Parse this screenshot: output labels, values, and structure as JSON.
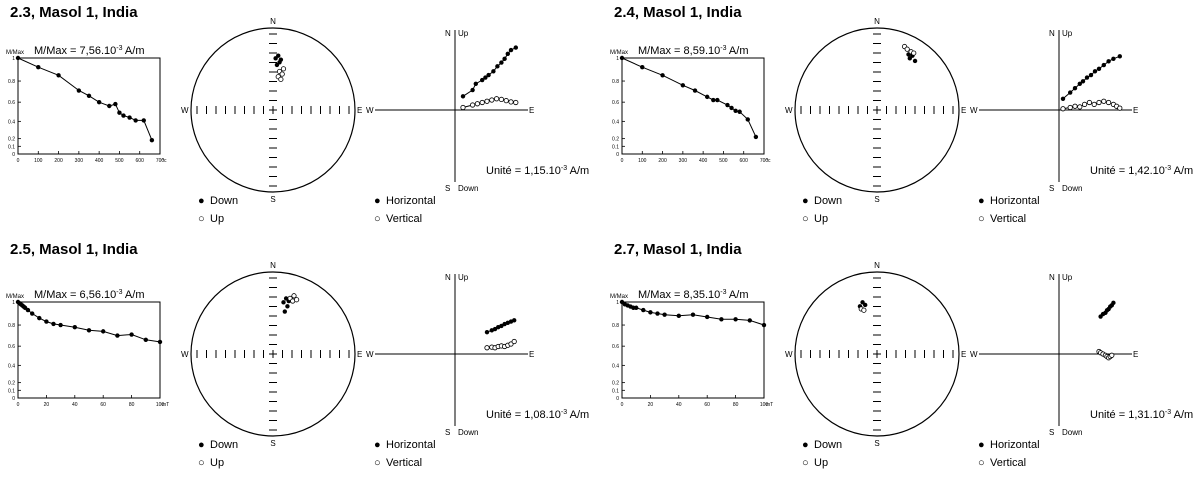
{
  "panels": [
    {
      "title": "2.3, Masol 1, India",
      "decay": {
        "ylabel": "M/Max",
        "mmax_text": "M/Max = 7,56.10",
        "mmax_exp": "-3",
        "mmax_unit": " A/m",
        "xunit": "°c",
        "yticks": [
          "1",
          "0.8",
          "0.6",
          "0.4",
          "0.2",
          "0.1",
          "0"
        ],
        "xticks": [
          "0",
          "100",
          "200",
          "300",
          "400",
          "500",
          "600",
          "700"
        ],
        "xmax": 700
      },
      "stereo": {
        "labels": {
          "N": "N",
          "S": "S",
          "E": "E",
          "W": "W"
        }
      },
      "zij": {
        "labels": {
          "N": "N",
          "up": "Up",
          "S": "S",
          "down": "Down",
          "E": "E",
          "W": "W"
        },
        "unit_text": "Unité = 1,15.10",
        "unit_exp": "-3",
        "unit_unit": " A/m"
      },
      "legend": {
        "down": "Down",
        "up": "Up",
        "horizontal": "Horizontal",
        "vertical": "Vertical"
      }
    },
    {
      "title": "2.4, Masol 1, India",
      "decay": {
        "ylabel": "M/Max",
        "mmax_text": "M/Max = 8,59.10",
        "mmax_exp": "-3",
        "mmax_unit": " A/m",
        "xunit": "°c",
        "yticks": [
          "1",
          "0.8",
          "0.6",
          "0.4",
          "0.2",
          "0.1",
          "0"
        ],
        "xticks": [
          "0",
          "100",
          "200",
          "300",
          "400",
          "500",
          "600",
          "700"
        ],
        "xmax": 700
      },
      "stereo": {
        "labels": {
          "N": "N",
          "S": "S",
          "E": "E",
          "W": "W"
        }
      },
      "zij": {
        "labels": {
          "N": "N",
          "up": "Up",
          "S": "S",
          "down": "Down",
          "E": "E",
          "W": "W"
        },
        "unit_text": "Unité = 1,42.10",
        "unit_exp": "-3",
        "unit_unit": " A/m"
      },
      "legend": {
        "down": "Down",
        "up": "Up",
        "horizontal": "Horizontal",
        "vertical": "Vertical"
      }
    },
    {
      "title": "2.5, Masol 1, India",
      "decay": {
        "ylabel": "M/Max",
        "mmax_text": "M/Max = 6,56.10",
        "mmax_exp": "-3",
        "mmax_unit": " A/m",
        "xunit": "mT",
        "yticks": [
          "1",
          "0.8",
          "0.6",
          "0.4",
          "0.2",
          "0.1",
          "0"
        ],
        "xticks": [
          "0",
          "20",
          "40",
          "60",
          "80",
          "100"
        ],
        "xmax": 100
      },
      "stereo": {
        "labels": {
          "N": "N",
          "S": "S",
          "E": "E",
          "W": "W"
        }
      },
      "zij": {
        "labels": {
          "N": "N",
          "up": "Up",
          "S": "S",
          "down": "Down",
          "E": "E",
          "W": "W"
        },
        "unit_text": "Unité = 1,08.10",
        "unit_exp": "-3",
        "unit_unit": " A/m"
      },
      "legend": {
        "down": "Down",
        "up": "Up",
        "horizontal": "Horizontal",
        "vertical": "Vertical"
      }
    },
    {
      "title": "2.7, Masol 1, India",
      "decay": {
        "ylabel": "M/Max",
        "mmax_text": "M/Max = 8,35.10",
        "mmax_exp": "-3",
        "mmax_unit": " A/m",
        "xunit": "mT",
        "yticks": [
          "1",
          "0.8",
          "0.6",
          "0.4",
          "0.2",
          "0.1",
          "0"
        ],
        "xticks": [
          "0",
          "20",
          "40",
          "60",
          "80",
          "100"
        ],
        "xmax": 100
      },
      "stereo": {
        "labels": {
          "N": "N",
          "S": "S",
          "E": "E",
          "W": "W"
        }
      },
      "zij": {
        "labels": {
          "N": "N",
          "up": "Up",
          "S": "S",
          "down": "Down",
          "E": "E",
          "W": "W"
        },
        "unit_text": "Unité = 1,31.10",
        "unit_exp": "-3",
        "unit_unit": " A/m"
      },
      "legend": {
        "down": "Down",
        "up": "Up",
        "horizontal": "Horizontal",
        "vertical": "Vertical"
      }
    }
  ],
  "chart_data": [
    {
      "type": "line",
      "title": "2.3, Masol 1, India",
      "ylabel": "M/Max",
      "xunit": "°c",
      "xlim": [
        0,
        700
      ],
      "ylim": [
        0,
        1
      ],
      "series": [
        {
          "x": [
            0,
            100,
            200,
            300,
            350,
            400,
            450,
            480,
            500,
            520,
            550,
            580,
            620,
            660
          ],
          "y": [
            1,
            0.92,
            0.85,
            0.71,
            0.66,
            0.6,
            0.56,
            0.58,
            0.49,
            0.46,
            0.44,
            0.41,
            0.41,
            0.18
          ]
        }
      ]
    },
    {
      "type": "line",
      "title": "2.4, Masol 1, India",
      "ylabel": "M/Max",
      "xunit": "°c",
      "xlim": [
        0,
        700
      ],
      "ylim": [
        0,
        1
      ],
      "series": [
        {
          "x": [
            0,
            100,
            200,
            300,
            360,
            420,
            450,
            470,
            520,
            540,
            560,
            580,
            620,
            660
          ],
          "y": [
            1,
            0.92,
            0.85,
            0.76,
            0.71,
            0.65,
            0.62,
            0.62,
            0.57,
            0.54,
            0.51,
            0.5,
            0.42,
            0.22
          ]
        }
      ]
    },
    {
      "type": "line",
      "title": "2.5, Masol 1, India",
      "ylabel": "M/Max",
      "xunit": "mT",
      "xlim": [
        0,
        100
      ],
      "ylim": [
        0,
        1
      ],
      "series": [
        {
          "x": [
            0,
            1,
            2,
            3,
            4,
            5,
            7,
            10,
            15,
            20,
            25,
            30,
            40,
            50,
            60,
            70,
            80,
            90,
            100
          ],
          "y": [
            1,
            0.99,
            0.98,
            0.97,
            0.96,
            0.95,
            0.93,
            0.9,
            0.86,
            0.83,
            0.81,
            0.8,
            0.78,
            0.75,
            0.74,
            0.7,
            0.71,
            0.66,
            0.64
          ]
        }
      ]
    },
    {
      "type": "line",
      "title": "2.7, Masol 1, India",
      "ylabel": "M/Max",
      "xunit": "mT",
      "xlim": [
        0,
        100
      ],
      "ylim": [
        0,
        1
      ],
      "series": [
        {
          "x": [
            0,
            2,
            4,
            6,
            8,
            10,
            15,
            20,
            25,
            30,
            40,
            50,
            60,
            70,
            80,
            90,
            100
          ],
          "y": [
            1,
            0.98,
            0.97,
            0.96,
            0.95,
            0.95,
            0.93,
            0.91,
            0.9,
            0.89,
            0.88,
            0.89,
            0.87,
            0.85,
            0.85,
            0.84,
            0.8
          ]
        }
      ]
    },
    {
      "type": "scatter",
      "title": "2.3, Masol 1, India",
      "stereo": {
        "down": [
          [
            0.52,
            0.55
          ],
          [
            0.53,
            0.5
          ],
          [
            0.55,
            0.52
          ],
          [
            0.54,
            0.57
          ],
          [
            0.56,
            0.54
          ]
        ],
        "up": [
          [
            0.55,
            0.45
          ],
          [
            0.57,
            0.43
          ],
          [
            0.54,
            0.41
          ],
          [
            0.58,
            0.47
          ],
          [
            0.56,
            0.39
          ]
        ]
      },
      "horizontal": [
        [
          0.1,
          0.22
        ],
        [
          0.22,
          0.32
        ],
        [
          0.26,
          0.42
        ],
        [
          0.34,
          0.48
        ],
        [
          0.38,
          0.52
        ],
        [
          0.42,
          0.56
        ],
        [
          0.48,
          0.62
        ],
        [
          0.53,
          0.7
        ],
        [
          0.58,
          0.76
        ],
        [
          0.62,
          0.82
        ],
        [
          0.66,
          0.9
        ],
        [
          0.7,
          0.96
        ],
        [
          0.76,
          1.0
        ]
      ],
      "vertical": [
        [
          0.1,
          0.04
        ],
        [
          0.22,
          0.08
        ],
        [
          0.28,
          0.1
        ],
        [
          0.34,
          0.12
        ],
        [
          0.4,
          0.14
        ],
        [
          0.46,
          0.16
        ],
        [
          0.52,
          0.18
        ],
        [
          0.58,
          0.17
        ],
        [
          0.64,
          0.15
        ],
        [
          0.7,
          0.13
        ],
        [
          0.76,
          0.12
        ]
      ]
    },
    {
      "type": "scatter",
      "title": "2.4, Masol 1, India",
      "stereo": {
        "down": [
          [
            0.74,
            0.58
          ],
          [
            0.75,
            0.55
          ],
          [
            0.77,
            0.57
          ],
          [
            0.79,
            0.53
          ]
        ],
        "up": [
          [
            0.71,
            0.64
          ],
          [
            0.73,
            0.62
          ],
          [
            0.76,
            0.6
          ],
          [
            0.78,
            0.59
          ]
        ]
      },
      "horizontal": [
        [
          0.05,
          0.18
        ],
        [
          0.14,
          0.28
        ],
        [
          0.2,
          0.35
        ],
        [
          0.26,
          0.42
        ],
        [
          0.3,
          0.46
        ],
        [
          0.35,
          0.52
        ],
        [
          0.4,
          0.56
        ],
        [
          0.45,
          0.62
        ],
        [
          0.5,
          0.66
        ],
        [
          0.56,
          0.72
        ],
        [
          0.62,
          0.78
        ],
        [
          0.68,
          0.82
        ],
        [
          0.76,
          0.86
        ]
      ],
      "vertical": [
        [
          0.05,
          0.02
        ],
        [
          0.14,
          0.04
        ],
        [
          0.2,
          0.06
        ],
        [
          0.26,
          0.05
        ],
        [
          0.32,
          0.09
        ],
        [
          0.38,
          0.12
        ],
        [
          0.44,
          0.09
        ],
        [
          0.5,
          0.12
        ],
        [
          0.56,
          0.14
        ],
        [
          0.62,
          0.12
        ],
        [
          0.68,
          0.09
        ],
        [
          0.72,
          0.06
        ],
        [
          0.76,
          0.03
        ]
      ]
    },
    {
      "type": "scatter",
      "title": "2.5, Masol 1, India",
      "stereo": {
        "down": [
          [
            0.58,
            0.55
          ],
          [
            0.6,
            0.58
          ],
          [
            0.62,
            0.56
          ],
          [
            0.61,
            0.52
          ],
          [
            0.59,
            0.48
          ]
        ],
        "up": [
          [
            0.63,
            0.58
          ],
          [
            0.65,
            0.56
          ],
          [
            0.68,
            0.57
          ],
          [
            0.66,
            0.6
          ]
        ]
      },
      "horizontal": [
        [
          0.4,
          0.35
        ],
        [
          0.46,
          0.38
        ],
        [
          0.5,
          0.4
        ],
        [
          0.54,
          0.43
        ],
        [
          0.58,
          0.45
        ],
        [
          0.62,
          0.48
        ],
        [
          0.66,
          0.5
        ],
        [
          0.7,
          0.52
        ],
        [
          0.74,
          0.54
        ]
      ],
      "vertical": [
        [
          0.4,
          0.1
        ],
        [
          0.46,
          0.11
        ],
        [
          0.5,
          0.1
        ],
        [
          0.54,
          0.12
        ],
        [
          0.58,
          0.13
        ],
        [
          0.62,
          0.12
        ],
        [
          0.66,
          0.14
        ],
        [
          0.7,
          0.16
        ],
        [
          0.74,
          0.2
        ]
      ]
    },
    {
      "type": "scatter",
      "title": "2.7, Masol 1, India",
      "stereo": {
        "down": [
          [
            0.37,
            0.52
          ],
          [
            0.39,
            0.55
          ],
          [
            0.41,
            0.53
          ]
        ],
        "up": [
          [
            0.38,
            0.5
          ],
          [
            0.4,
            0.49
          ]
        ]
      },
      "horizontal": [
        [
          0.52,
          0.6
        ],
        [
          0.55,
          0.64
        ],
        [
          0.58,
          0.66
        ],
        [
          0.6,
          0.7
        ],
        [
          0.62,
          0.72
        ],
        [
          0.64,
          0.76
        ],
        [
          0.66,
          0.78
        ],
        [
          0.68,
          0.82
        ]
      ],
      "vertical": [
        [
          0.5,
          0.04
        ],
        [
          0.52,
          0.02
        ],
        [
          0.55,
          0.0
        ],
        [
          0.58,
          -0.02
        ],
        [
          0.6,
          -0.04
        ],
        [
          0.62,
          -0.06
        ],
        [
          0.64,
          -0.04
        ],
        [
          0.66,
          -0.02
        ]
      ]
    }
  ]
}
